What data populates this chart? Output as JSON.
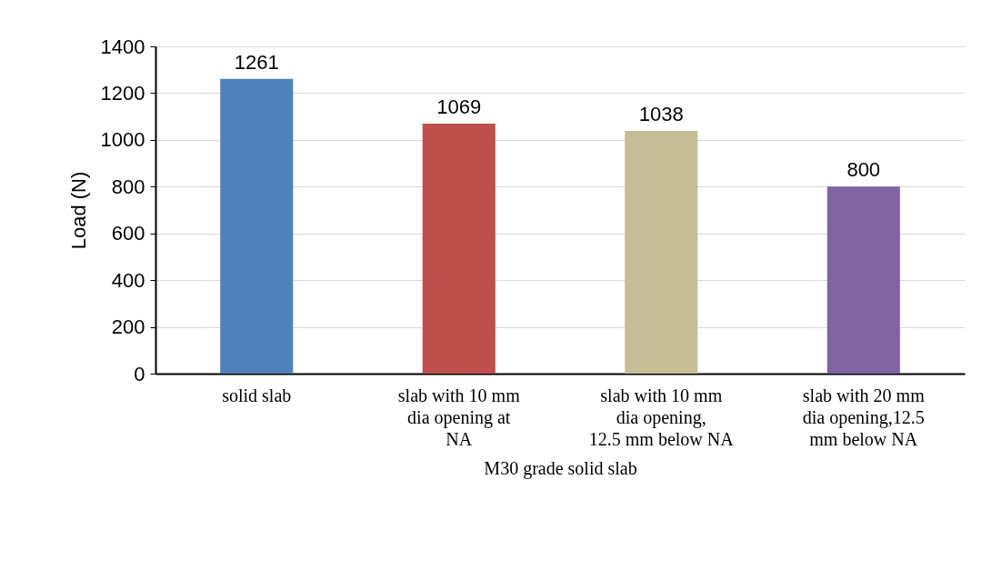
{
  "chart_data": {
    "type": "bar",
    "xlabel": "M30 grade solid slab",
    "ylabel": "Load (N)",
    "categories": [
      "solid slab",
      "slab with 10 mm dia opening at NA",
      "slab with 10 mm dia opening, 12.5 mm below NA",
      "slab with 20 mm dia opening,12.5 mm  below NA"
    ],
    "values": [
      1261,
      1069,
      1038,
      800
    ],
    "colors": [
      "#4f81bd",
      "#c0504d",
      "#c4bd97",
      "#8064a2"
    ],
    "ylim": [
      0,
      1400
    ],
    "yticks": [
      0,
      200,
      400,
      600,
      800,
      1000,
      1200,
      1400
    ],
    "grid": "y",
    "data_labels": true
  }
}
